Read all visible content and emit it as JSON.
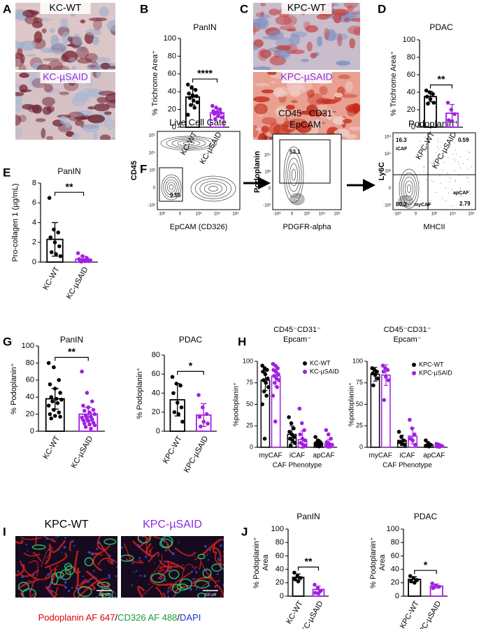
{
  "panel_labels": [
    "A",
    "B",
    "C",
    "D",
    "E",
    "F",
    "G",
    "H",
    "I",
    "J"
  ],
  "images": [
    {
      "label": "KC-WT",
      "color": "#000000"
    },
    {
      "label": "KC-µSAID",
      "color": "#8a2be2"
    },
    {
      "label": "KPC-WT",
      "color": "#000000"
    },
    {
      "label": "KPC-µSAID",
      "color": "#8a2be2"
    },
    {
      "label": "KPC-WT",
      "color": "#000000",
      "scale": "100 µM"
    },
    {
      "label": "KPC-µSAID",
      "color": "#8a2be2",
      "scale": "100 µM"
    }
  ],
  "caption": [
    {
      "text": "Podoplanin AF 647",
      "color": "#e00000"
    },
    {
      "text": "/",
      "color": "#000000"
    },
    {
      "text": "CD326 AF 488",
      "color": "#1a9a3a"
    },
    {
      "text": "/",
      "color": "#000000"
    },
    {
      "text": "DAPI",
      "color": "#2030c0"
    }
  ],
  "flow": {
    "plots": [
      {
        "title_lines": [
          "Live Cell Gate"
        ],
        "x_label": "EpCAM (CD326)",
        "y_label": "CD45",
        "xticks": [
          "-10³",
          "0",
          "10³",
          "10⁴",
          "10⁵"
        ],
        "yticks": [
          "-10³",
          "0",
          "10³",
          "10⁴",
          "10⁵"
        ],
        "gates": [
          {
            "value": 9.55
          }
        ]
      },
      {
        "title_lines": [
          "CD45⁻ CD31⁻",
          "EpCAM⁻"
        ],
        "x_label": "PDGFR-alpha",
        "y_label": "Podoplanin",
        "xticks": [
          "-10³",
          "0",
          "10³",
          "10⁴",
          "10⁵"
        ],
        "yticks": [
          "-10³",
          "0",
          "10³",
          "10⁴",
          "10⁵"
        ],
        "gates": [
          {
            "value": 53.1
          }
        ]
      },
      {
        "title_lines": [
          "Podoplanin⁺"
        ],
        "x_label": "MHCII",
        "y_label": "Ly6C",
        "xticks": [
          "-10³",
          "0",
          "10³",
          "10⁴",
          "10⁵"
        ],
        "yticks": [
          "-10³",
          "0",
          "10³",
          "10⁴",
          "10⁵"
        ],
        "gates": [
          {
            "value": 16.3,
            "label": "iCAF"
          },
          {
            "value": 0.59
          },
          {
            "value": 80.3,
            "label": "myCAF"
          },
          {
            "value": 2.79,
            "label": "apCAF"
          }
        ]
      }
    ]
  },
  "chart_data": [
    {
      "type": "bar",
      "title": "PanIN",
      "y_label": [
        "% Trichrome Area⁺"
      ],
      "categories": [
        "KC-WT",
        "KC-µSAID"
      ],
      "colors": [
        "#000000",
        "#a020e0"
      ],
      "values": [
        34,
        16
      ],
      "errors": [
        9,
        5
      ],
      "points": [
        [
          48,
          45,
          42,
          38,
          36,
          35,
          33,
          30,
          28,
          25,
          22,
          14
        ],
        [
          24,
          22,
          20,
          18,
          17,
          16,
          15,
          13,
          11,
          9
        ]
      ],
      "ylim": [
        0,
        100
      ],
      "yticks": [
        0,
        20,
        40,
        60,
        80,
        100
      ],
      "significance": "****"
    },
    {
      "type": "bar",
      "title": "PDAC",
      "y_label": [
        "% Trichrome Area⁺"
      ],
      "categories": [
        "KPC-WT",
        "KPC-µSAID"
      ],
      "colors": [
        "#000000",
        "#a020e0"
      ],
      "values": [
        35,
        16
      ],
      "errors": [
        6,
        10
      ],
      "points": [
        [
          42,
          40,
          38,
          35,
          32,
          28,
          27
        ],
        [
          28,
          20,
          15,
          8,
          7
        ]
      ],
      "ylim": [
        0,
        100
      ],
      "yticks": [
        0,
        20,
        40,
        60,
        80,
        100
      ],
      "significance": "**"
    },
    {
      "type": "bar",
      "title": "PanIN",
      "y_label": [
        "Pro-collagen 1 (µg/mL)"
      ],
      "categories": [
        "KC-WT",
        "KC-µSAID"
      ],
      "colors": [
        "#000000",
        "#a020e0"
      ],
      "values": [
        2.3,
        0.3
      ],
      "errors": [
        1.7,
        0.3
      ],
      "points": [
        [
          6.5,
          3.3,
          3,
          2.5,
          2,
          1.6,
          1,
          0.8,
          0.6
        ],
        [
          0.9,
          0.6,
          0.4,
          0.3,
          0.2,
          0.2,
          0.1,
          0.1,
          0.1,
          0.05
        ]
      ],
      "ylim": [
        0,
        8
      ],
      "yticks": [
        0,
        2,
        4,
        6,
        8
      ],
      "significance": "**"
    },
    {
      "type": "bar",
      "title": "PanIN",
      "y_label": [
        "% Podoplanin⁺"
      ],
      "categories": [
        "KC-WT",
        "KC-µSAID"
      ],
      "colors": [
        "#000000",
        "#a020e0"
      ],
      "values": [
        38,
        20
      ],
      "errors": [
        12,
        8
      ],
      "points": [
        [
          80,
          75,
          60,
          55,
          50,
          45,
          40,
          38,
          37,
          35,
          33,
          30,
          25,
          22,
          20,
          18,
          17,
          15
        ],
        [
          70,
          45,
          35,
          30,
          28,
          25,
          24,
          22,
          20,
          18,
          17,
          16,
          15,
          14,
          13,
          12,
          10,
          9,
          8,
          7,
          5,
          3
        ]
      ],
      "ylim": [
        0,
        100
      ],
      "yticks": [
        0,
        20,
        40,
        60,
        80,
        100
      ],
      "significance": "**"
    },
    {
      "type": "bar",
      "title": "PDAC",
      "y_label": [
        "% Podoplanin⁺"
      ],
      "categories": [
        "KPC-WT",
        "KPC-µSAID"
      ],
      "colors": [
        "#000000",
        "#a020e0"
      ],
      "values": [
        33,
        17
      ],
      "errors": [
        17,
        12
      ],
      "points": [
        [
          57,
          50,
          48,
          40,
          30,
          25,
          20,
          18,
          10
        ],
        [
          38,
          25,
          18,
          15,
          10,
          8,
          5
        ]
      ],
      "ylim": [
        0,
        80
      ],
      "yticks": [
        0,
        20,
        40,
        60,
        80
      ],
      "significance": "*"
    },
    {
      "type": "grouped_bar",
      "title_lines": [
        "CD45⁻CD31⁻",
        "Epcam⁻"
      ],
      "y_label": [
        "%podoplanin⁺"
      ],
      "x_label": "CAF Phenotype",
      "categories": [
        "myCAF",
        "iCAF",
        "apCAF"
      ],
      "series": [
        {
          "name": "KC-WT",
          "color": "#000000",
          "values": [
            78,
            15,
            5
          ],
          "errors": [
            12,
            10,
            4
          ],
          "points": [
            [
              95,
              92,
              90,
              88,
              85,
              80,
              78,
              75,
              70,
              65,
              60,
              50,
              10
            ],
            [
              35,
              28,
              22,
              18,
              15,
              12,
              10,
              8,
              5,
              2
            ],
            [
              12,
              8,
              6,
              5,
              4,
              3,
              2,
              1
            ]
          ]
        },
        {
          "name": "KC-µSAID",
          "color": "#a020e0",
          "values": [
            83,
            9,
            4
          ],
          "errors": [
            12,
            10,
            5
          ],
          "points": [
            [
              97,
              95,
              92,
              90,
              88,
              85,
              83,
              80,
              78,
              75,
              70,
              60,
              30
            ],
            [
              45,
              28,
              20,
              15,
              10,
              8,
              5,
              3,
              2
            ],
            [
              20,
              15,
              10,
              6,
              4,
              3,
              2,
              1
            ]
          ]
        }
      ],
      "ylim": [
        0,
        100
      ],
      "yticks": [
        0,
        25,
        50,
        75,
        100
      ]
    },
    {
      "type": "grouped_bar",
      "title_lines": [
        "CD45⁻CD31⁻",
        "Epcam⁻"
      ],
      "y_label": [
        "%podoplanin⁺"
      ],
      "x_label": "CAF Phenotype",
      "categories": [
        "myCAF",
        "iCAF",
        "apCAF"
      ],
      "series": [
        {
          "name": "KPC-WT",
          "color": "#000000",
          "values": [
            85,
            8,
            3
          ],
          "errors": [
            8,
            6,
            2
          ],
          "points": [
            [
              92,
              90,
              88,
              86,
              84,
              80,
              72
            ],
            [
              18,
              12,
              8,
              6,
              4,
              3
            ],
            [
              8,
              5,
              3,
              2,
              1
            ]
          ]
        },
        {
          "name": "KPC-µSAID",
          "color": "#a020e0",
          "values": [
            84,
            13,
            2
          ],
          "errors": [
            12,
            9,
            1
          ],
          "points": [
            [
              95,
              92,
              90,
              88,
              82,
              78,
              55
            ],
            [
              32,
              22,
              15,
              10,
              8,
              3
            ],
            [
              4,
              3,
              2,
              1,
              0.5
            ]
          ]
        }
      ],
      "ylim": [
        0,
        100
      ],
      "yticks": [
        0,
        25,
        50,
        75,
        100
      ]
    },
    {
      "type": "bar",
      "title": "PanIN",
      "y_label": [
        "% Podoplanin⁺",
        "Area"
      ],
      "categories": [
        "KC-WT",
        "KC-µSAID"
      ],
      "colors": [
        "#000000",
        "#a020e0"
      ],
      "values": [
        28,
        10
      ],
      "errors": [
        5,
        5
      ],
      "points": [
        [
          35,
          30,
          27,
          25,
          22
        ],
        [
          17,
          12,
          8,
          5,
          4
        ]
      ],
      "ylim": [
        0,
        100
      ],
      "yticks": [
        0,
        20,
        40,
        60,
        80,
        100
      ],
      "significance": "**"
    },
    {
      "type": "bar",
      "title": "PDAC",
      "y_label": [
        "% Podoplanin⁺",
        "Area"
      ],
      "categories": [
        "KPC-WT",
        "KPC-µSAID"
      ],
      "colors": [
        "#000000",
        "#a020e0"
      ],
      "values": [
        25,
        15
      ],
      "errors": [
        4,
        3
      ],
      "points": [
        [
          30,
          27,
          24,
          22,
          20
        ],
        [
          19,
          16,
          14,
          12
        ]
      ],
      "ylim": [
        0,
        100
      ],
      "yticks": [
        0,
        20,
        40,
        60,
        80,
        100
      ],
      "significance": "*"
    }
  ]
}
